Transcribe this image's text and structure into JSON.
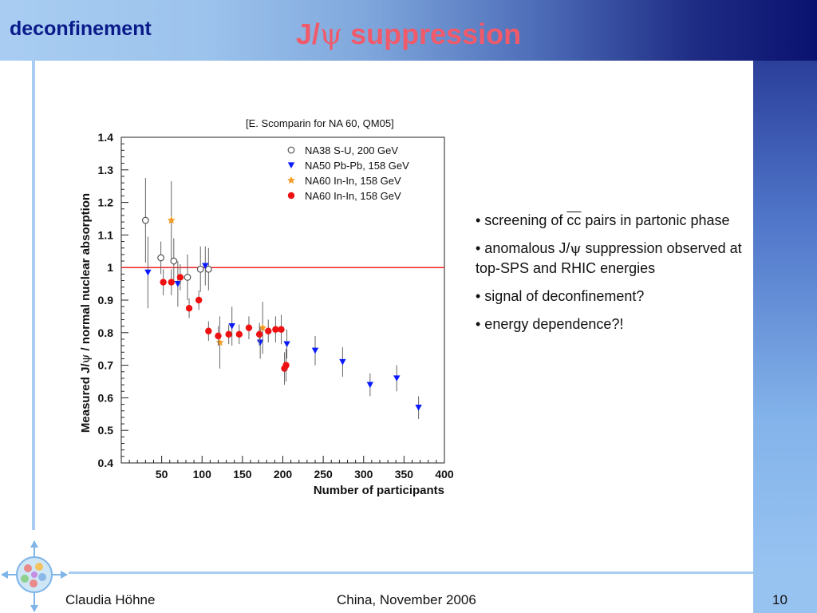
{
  "header": {
    "section": "deconfinement",
    "title_prefix": "J/",
    "title_symbol": "ψ",
    "title_suffix": " suppression"
  },
  "footer": {
    "author": "Claudia Höhne",
    "event": "China, November 2006",
    "page": "10"
  },
  "bullets": [
    {
      "parts": [
        "• screening of ",
        "cc",
        " pairs in partonic phase"
      ]
    },
    {
      "parts": [
        "• anomalous J/",
        "ψ",
        " suppression observed  at top-SPS and RHIC energies"
      ]
    },
    {
      "parts": [
        "• signal of deconfinement?"
      ]
    },
    {
      "parts": [
        "• energy dependence?!"
      ]
    }
  ],
  "chart_data": {
    "type": "scatter",
    "citation": "[E. Scomparin for NA 60, QM05]",
    "xlabel": "Number of participants",
    "ylabel": "Measured J/ψ / normal nuclear absorption",
    "ylabel_parts": [
      "Measured J/",
      "ψ",
      " / normal nuclear absorption"
    ],
    "xlim": [
      0,
      400
    ],
    "ylim": [
      0.4,
      1.4
    ],
    "x_ticks": [
      50,
      100,
      150,
      200,
      250,
      300,
      350,
      400
    ],
    "y_ticks": [
      0.4,
      0.5,
      0.6,
      0.7,
      0.8,
      0.9,
      1,
      1.1,
      1.2,
      1.3,
      1.4
    ],
    "reference_line": 1,
    "series": [
      {
        "name": "NA38 S-U, 200 GeV",
        "label_prefix": "NA38",
        "label_rest": " S-U, 200 GeV",
        "marker": "open-circle",
        "color": "#555555",
        "points": [
          {
            "x": 30,
            "y": 1.145,
            "err": 0.13
          },
          {
            "x": 49,
            "y": 1.03,
            "err": 0.05
          },
          {
            "x": 65,
            "y": 1.02,
            "err": 0.07
          },
          {
            "x": 82,
            "y": 0.97,
            "err": 0.07
          },
          {
            "x": 98,
            "y": 0.995,
            "err": 0.07
          },
          {
            "x": 108,
            "y": 0.995,
            "err": 0.065
          }
        ]
      },
      {
        "name": "NA50 Pb-Pb, 158 GeV",
        "label_prefix": "NA50",
        "label_rest": " Pb-Pb, 158 GeV",
        "marker": "triangle-down",
        "color": "#0a1aff",
        "points": [
          {
            "x": 33,
            "y": 0.985,
            "err": 0.11
          },
          {
            "x": 70,
            "y": 0.95,
            "err": 0.07
          },
          {
            "x": 104,
            "y": 1.005,
            "err": 0.06
          },
          {
            "x": 137,
            "y": 0.82,
            "err": 0.06
          },
          {
            "x": 172,
            "y": 0.77,
            "err": 0.05
          },
          {
            "x": 205,
            "y": 0.765,
            "err": 0.045
          },
          {
            "x": 240,
            "y": 0.745,
            "err": 0.045
          },
          {
            "x": 274,
            "y": 0.71,
            "err": 0.045
          },
          {
            "x": 308,
            "y": 0.64,
            "err": 0.035
          },
          {
            "x": 341,
            "y": 0.66,
            "err": 0.04
          },
          {
            "x": 368,
            "y": 0.57,
            "err": 0.035
          }
        ]
      },
      {
        "name": "NA60 In-In, 158 GeV",
        "label_prefix": "NA60",
        "label_rest": " In-In, 158 GeV",
        "marker": "star",
        "color": "#f39a22",
        "points": [
          {
            "x": 62,
            "y": 1.145,
            "err": 0.12
          },
          {
            "x": 122,
            "y": 0.77,
            "err": 0.08
          },
          {
            "x": 175,
            "y": 0.815,
            "err": 0.08
          }
        ]
      },
      {
        "name": "NA60 In-In, 158 GeV",
        "label_prefix": "NA60",
        "label_rest": " In-In, 158 GeV",
        "marker": "filled-circle",
        "color": "#ee1111",
        "points": [
          {
            "x": 52,
            "y": 0.955,
            "err": 0.04
          },
          {
            "x": 62,
            "y": 0.955,
            "err": 0.04
          },
          {
            "x": 73,
            "y": 0.97,
            "err": 0.04
          },
          {
            "x": 84,
            "y": 0.875,
            "err": 0.03
          },
          {
            "x": 96,
            "y": 0.9,
            "err": 0.03
          },
          {
            "x": 108,
            "y": 0.805,
            "err": 0.03
          },
          {
            "x": 120,
            "y": 0.79,
            "err": 0.03
          },
          {
            "x": 133,
            "y": 0.795,
            "err": 0.03
          },
          {
            "x": 146,
            "y": 0.795,
            "err": 0.03
          },
          {
            "x": 158,
            "y": 0.815,
            "err": 0.035
          },
          {
            "x": 171,
            "y": 0.795,
            "err": 0.035
          },
          {
            "x": 182,
            "y": 0.805,
            "err": 0.035
          },
          {
            "x": 191,
            "y": 0.81,
            "err": 0.04
          },
          {
            "x": 198,
            "y": 0.81,
            "err": 0.045
          },
          {
            "x": 202,
            "y": 0.69,
            "err": 0.05
          },
          {
            "x": 204,
            "y": 0.7,
            "err": 0.05
          }
        ]
      }
    ]
  }
}
